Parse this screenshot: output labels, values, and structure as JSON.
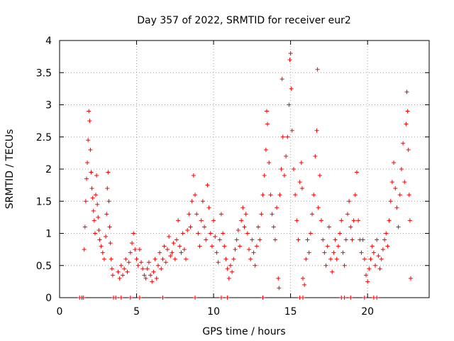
{
  "chart_data": {
    "type": "scatter",
    "title": "Day 357 of 2022, SRMTID for receiver eur2",
    "xlabel": "GPS time / hours",
    "ylabel": "SRMTID / TECUs",
    "xlim": [
      0,
      24
    ],
    "ylim": [
      0,
      4
    ],
    "xticks": [
      0,
      5,
      10,
      15,
      20
    ],
    "xtick_labels": [
      "0",
      "5",
      "10",
      "15",
      "20"
    ],
    "yticks": [
      0,
      0.5,
      1,
      1.5,
      2,
      2.5,
      3,
      3.5,
      4
    ],
    "ytick_labels": [
      "0",
      "0.5",
      "1",
      "1.5",
      "2",
      "2.5",
      "3",
      "3.5",
      "4"
    ],
    "grid": true,
    "marker": "+",
    "color": "#ff0000",
    "series": [
      {
        "name": "SRMTID",
        "points": [
          [
            1.3,
            0
          ],
          [
            1.45,
            0
          ],
          [
            1.55,
            0
          ],
          [
            3.5,
            0
          ],
          [
            3.65,
            0
          ],
          [
            4.0,
            0
          ],
          [
            4.6,
            0
          ],
          [
            5.2,
            0
          ],
          [
            6.7,
            0
          ],
          [
            8.8,
            0
          ],
          [
            10.5,
            0
          ],
          [
            10.9,
            0
          ],
          [
            13.2,
            0
          ],
          [
            15.6,
            0
          ],
          [
            15.8,
            0
          ],
          [
            18.3,
            0
          ],
          [
            18.5,
            0
          ],
          [
            18.9,
            0
          ],
          [
            19.8,
            0
          ],
          [
            20.4,
            0
          ],
          [
            20.6,
            0
          ],
          [
            1.6,
            0.75
          ],
          [
            1.65,
            1.1
          ],
          [
            1.7,
            1.5
          ],
          [
            1.75,
            1.85
          ],
          [
            1.8,
            2.1
          ],
          [
            1.85,
            2.45
          ],
          [
            1.9,
            2.9
          ],
          [
            1.95,
            2.75
          ],
          [
            2.0,
            2.3
          ],
          [
            2.05,
            1.95
          ],
          [
            2.1,
            1.7
          ],
          [
            2.15,
            1.55
          ],
          [
            2.2,
            1.35
          ],
          [
            2.25,
            1.2
          ],
          [
            2.3,
            1.0
          ],
          [
            2.35,
            1.6
          ],
          [
            2.4,
            1.9
          ],
          [
            2.45,
            1.45
          ],
          [
            2.5,
            1.25
          ],
          [
            2.55,
            1.05
          ],
          [
            2.6,
            0.9
          ],
          [
            2.7,
            0.8
          ],
          [
            2.8,
            0.7
          ],
          [
            2.9,
            0.6
          ],
          [
            3.0,
            0.95
          ],
          [
            3.05,
            1.3
          ],
          [
            3.1,
            1.7
          ],
          [
            3.15,
            1.95
          ],
          [
            3.2,
            1.5
          ],
          [
            3.25,
            1.1
          ],
          [
            3.3,
            0.85
          ],
          [
            3.35,
            0.6
          ],
          [
            3.4,
            0.45
          ],
          [
            3.45,
            0.35
          ],
          [
            3.8,
            0.4
          ],
          [
            3.9,
            0.3
          ],
          [
            4.0,
            0.5
          ],
          [
            4.1,
            0.35
          ],
          [
            4.2,
            0.45
          ],
          [
            4.3,
            0.6
          ],
          [
            4.4,
            0.4
          ],
          [
            4.5,
            0.55
          ],
          [
            4.6,
            0.7
          ],
          [
            4.7,
            0.85
          ],
          [
            4.8,
            1.0
          ],
          [
            4.9,
            0.75
          ],
          [
            5.0,
            0.6
          ],
          [
            5.1,
            0.5
          ],
          [
            5.2,
            0.75
          ],
          [
            5.3,
            0.55
          ],
          [
            5.4,
            0.45
          ],
          [
            5.5,
            0.35
          ],
          [
            5.6,
            0.3
          ],
          [
            5.7,
            0.45
          ],
          [
            5.8,
            0.55
          ],
          [
            5.9,
            0.35
          ],
          [
            6.0,
            0.25
          ],
          [
            6.1,
            0.4
          ],
          [
            6.2,
            0.6
          ],
          [
            6.3,
            0.3
          ],
          [
            6.4,
            0.5
          ],
          [
            6.5,
            0.7
          ],
          [
            6.6,
            0.45
          ],
          [
            6.7,
            0.6
          ],
          [
            6.8,
            0.8
          ],
          [
            6.9,
            0.55
          ],
          [
            7.0,
            0.75
          ],
          [
            7.1,
            0.95
          ],
          [
            7.2,
            0.65
          ],
          [
            7.3,
            0.7
          ],
          [
            7.4,
            0.85
          ],
          [
            7.5,
            0.6
          ],
          [
            7.6,
            0.9
          ],
          [
            7.7,
            1.2
          ],
          [
            7.8,
            0.8
          ],
          [
            7.9,
            0.7
          ],
          [
            8.0,
            1.0
          ],
          [
            8.1,
            0.75
          ],
          [
            8.2,
            0.6
          ],
          [
            8.3,
            1.05
          ],
          [
            8.4,
            1.3
          ],
          [
            8.5,
            1.1
          ],
          [
            8.6,
            1.5
          ],
          [
            8.7,
            1.9
          ],
          [
            8.8,
            1.6
          ],
          [
            8.9,
            1.3
          ],
          [
            9.0,
            1.0
          ],
          [
            9.1,
            0.8
          ],
          [
            9.2,
            1.2
          ],
          [
            9.3,
            1.5
          ],
          [
            9.4,
            1.1
          ],
          [
            9.5,
            0.9
          ],
          [
            9.6,
            1.75
          ],
          [
            9.7,
            1.4
          ],
          [
            9.8,
            1.0
          ],
          [
            9.9,
            0.8
          ],
          [
            10.0,
            1.2
          ],
          [
            10.1,
            0.95
          ],
          [
            10.2,
            0.7
          ],
          [
            10.3,
            0.55
          ],
          [
            10.4,
            0.9
          ],
          [
            10.5,
            1.3
          ],
          [
            10.6,
            1.0
          ],
          [
            10.7,
            0.8
          ],
          [
            10.8,
            0.6
          ],
          [
            10.9,
            0.45
          ],
          [
            11.0,
            0.3
          ],
          [
            11.1,
            0.5
          ],
          [
            11.2,
            0.4
          ],
          [
            11.3,
            0.6
          ],
          [
            11.4,
            0.75
          ],
          [
            11.5,
            0.9
          ],
          [
            11.6,
            1.05
          ],
          [
            11.7,
            0.8
          ],
          [
            11.8,
            1.2
          ],
          [
            11.9,
            1.4
          ],
          [
            12.0,
            1.1
          ],
          [
            12.1,
            1.3
          ],
          [
            12.2,
            1.0
          ],
          [
            12.3,
            0.75
          ],
          [
            12.4,
            0.6
          ],
          [
            12.5,
            0.9
          ],
          [
            12.6,
            0.7
          ],
          [
            12.7,
            0.5
          ],
          [
            12.8,
            0.8
          ],
          [
            12.9,
            1.1
          ],
          [
            13.0,
            0.9
          ],
          [
            13.1,
            1.3
          ],
          [
            13.2,
            1.6
          ],
          [
            13.3,
            1.9
          ],
          [
            13.4,
            2.3
          ],
          [
            13.45,
            2.9
          ],
          [
            13.5,
            2.7
          ],
          [
            13.6,
            2.1
          ],
          [
            13.7,
            1.6
          ],
          [
            13.8,
            1.3
          ],
          [
            13.9,
            1.1
          ],
          [
            14.0,
            0.9
          ],
          [
            14.1,
            1.4
          ],
          [
            14.2,
            0.3
          ],
          [
            14.25,
            0.15
          ],
          [
            14.3,
            1.6
          ],
          [
            14.4,
            2.0
          ],
          [
            14.45,
            3.4
          ],
          [
            14.5,
            2.5
          ],
          [
            14.6,
            1.9
          ],
          [
            14.7,
            2.2
          ],
          [
            14.8,
            2.5
          ],
          [
            14.9,
            3.0
          ],
          [
            14.95,
            3.7
          ],
          [
            15.0,
            3.8
          ],
          [
            15.05,
            3.25
          ],
          [
            15.1,
            2.6
          ],
          [
            15.2,
            2.0
          ],
          [
            15.3,
            1.6
          ],
          [
            15.4,
            1.2
          ],
          [
            15.5,
            0.9
          ],
          [
            15.6,
            1.8
          ],
          [
            15.7,
            2.1
          ],
          [
            15.75,
            1.7
          ],
          [
            15.8,
            0.3
          ],
          [
            15.9,
            0.2
          ],
          [
            16.0,
            0.6
          ],
          [
            16.1,
            0.9
          ],
          [
            16.2,
            0.7
          ],
          [
            16.3,
            1.0
          ],
          [
            16.4,
            1.3
          ],
          [
            16.5,
            1.6
          ],
          [
            16.6,
            2.2
          ],
          [
            16.7,
            2.6
          ],
          [
            16.75,
            3.55
          ],
          [
            16.8,
            1.4
          ],
          [
            16.9,
            1.9
          ],
          [
            17.0,
            1.2
          ],
          [
            17.1,
            0.9
          ],
          [
            17.2,
            0.7
          ],
          [
            17.3,
            0.5
          ],
          [
            17.4,
            0.8
          ],
          [
            17.5,
            1.1
          ],
          [
            17.6,
            0.6
          ],
          [
            17.7,
            0.4
          ],
          [
            17.8,
            0.7
          ],
          [
            17.9,
            0.9
          ],
          [
            18.0,
            0.6
          ],
          [
            18.1,
            0.8
          ],
          [
            18.2,
            1.0
          ],
          [
            18.3,
            1.2
          ],
          [
            18.4,
            0.7
          ],
          [
            18.5,
            0.5
          ],
          [
            18.6,
            0.9
          ],
          [
            18.7,
            1.3
          ],
          [
            18.8,
            1.5
          ],
          [
            18.9,
            1.1
          ],
          [
            19.0,
            0.9
          ],
          [
            19.1,
            1.2
          ],
          [
            19.2,
            1.6
          ],
          [
            19.3,
            1.95
          ],
          [
            19.4,
            1.2
          ],
          [
            19.5,
            0.9
          ],
          [
            19.6,
            0.7
          ],
          [
            19.7,
            0.9
          ],
          [
            19.8,
            0.6
          ],
          [
            19.9,
            0.35
          ],
          [
            20.0,
            0.25
          ],
          [
            20.1,
            0.45
          ],
          [
            20.2,
            0.6
          ],
          [
            20.3,
            0.8
          ],
          [
            20.4,
            0.7
          ],
          [
            20.5,
            0.5
          ],
          [
            20.6,
            0.9
          ],
          [
            20.7,
            0.65
          ],
          [
            20.8,
            0.45
          ],
          [
            20.9,
            0.6
          ],
          [
            21.0,
            0.75
          ],
          [
            21.1,
            0.9
          ],
          [
            21.2,
            1.0
          ],
          [
            21.3,
            0.8
          ],
          [
            21.4,
            1.2
          ],
          [
            21.5,
            1.5
          ],
          [
            21.6,
            1.8
          ],
          [
            21.7,
            2.1
          ],
          [
            21.8,
            1.7
          ],
          [
            21.9,
            1.4
          ],
          [
            22.0,
            1.1
          ],
          [
            22.1,
            1.6
          ],
          [
            22.2,
            2.0
          ],
          [
            22.3,
            2.4
          ],
          [
            22.4,
            1.8
          ],
          [
            22.5,
            2.7
          ],
          [
            22.55,
            3.2
          ],
          [
            22.6,
            2.9
          ],
          [
            22.65,
            2.3
          ],
          [
            22.7,
            1.6
          ],
          [
            22.75,
            1.2
          ],
          [
            22.8,
            0.3
          ]
        ]
      }
    ]
  }
}
